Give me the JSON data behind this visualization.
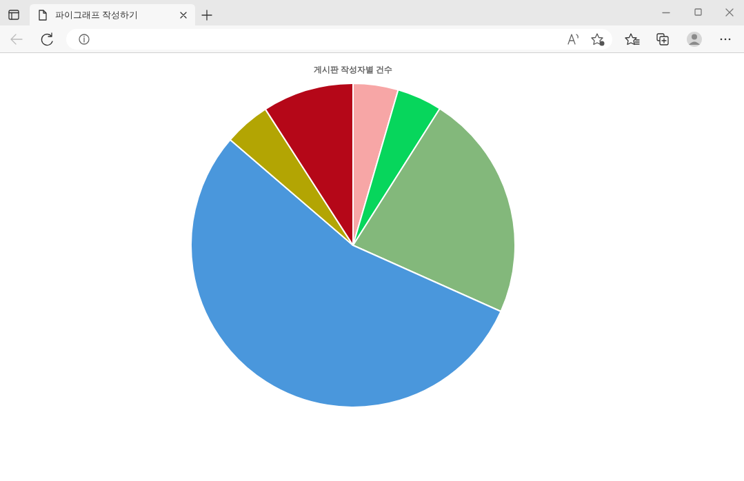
{
  "chart_data": {
    "type": "pie",
    "title": "게시판 작성자별 건수",
    "categories": [
      null,
      null,
      null,
      null,
      null,
      null
    ],
    "values": [
      4.5,
      4.5,
      22.7,
      54.6,
      4.6,
      9.1
    ],
    "colors": [
      "#f7a6a6",
      "#07d65c",
      "#83b87b",
      "#4a97dc",
      "#b3a503",
      "#b50718"
    ],
    "annotations": [
      "파이그래프 작성하기"
    ]
  }
}
